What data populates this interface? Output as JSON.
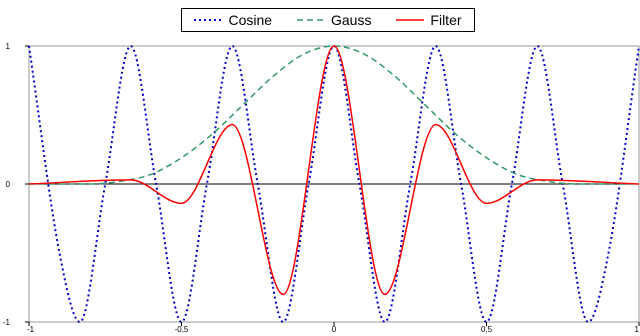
{
  "chart_data": {
    "type": "line",
    "title": "",
    "xlabel": "",
    "ylabel": "",
    "xlim": [
      -1,
      1
    ],
    "ylim": [
      -1,
      1
    ],
    "x_ticks": [
      -1,
      -0.5,
      0,
      0.5,
      1
    ],
    "x_tick_labels": [
      "-1",
      "-0,5",
      "0",
      "0,5",
      "1"
    ],
    "y_ticks": [
      -1,
      0,
      1
    ],
    "y_tick_labels": [
      "-1",
      "0",
      "1"
    ],
    "grid": false,
    "legend_position": "top-center",
    "series": [
      {
        "name": "Cosine",
        "style": "dotted",
        "color": "#0000cc",
        "x": [
          -1,
          -0.9,
          -0.8333,
          -0.75,
          -0.6667,
          -0.5833,
          -0.5,
          -0.4167,
          -0.3333,
          -0.25,
          -0.1667,
          -0.0833,
          0,
          0.0833,
          0.1667,
          0.25,
          0.3333,
          0.4167,
          0.5,
          0.5833,
          0.6667,
          0.75,
          0.8333,
          0.9,
          1
        ],
        "y": [
          1,
          -0.5,
          -1,
          0,
          1,
          0,
          -1,
          0,
          1,
          0,
          -1,
          0,
          1,
          0,
          -1,
          0,
          1,
          0,
          -1,
          0,
          1,
          0,
          -1,
          -0.5,
          1
        ]
      },
      {
        "name": "Gauss",
        "style": "dashed",
        "color": "#339966",
        "x": [
          -1,
          -0.8,
          -0.7,
          -0.6,
          -0.5,
          -0.4,
          -0.3,
          -0.2,
          -0.1,
          0,
          0.1,
          0.2,
          0.3,
          0.4,
          0.5,
          0.6,
          0.7,
          0.8,
          1
        ],
        "y": [
          0,
          0.0,
          0.02,
          0.07,
          0.19,
          0.36,
          0.57,
          0.78,
          0.94,
          1,
          0.94,
          0.78,
          0.57,
          0.36,
          0.19,
          0.07,
          0.02,
          0.0,
          0
        ]
      },
      {
        "name": "Filter",
        "style": "solid",
        "color": "#ff0000",
        "x": [
          -1,
          -0.6667,
          -0.5,
          -0.3333,
          -0.1667,
          0,
          0.1667,
          0.3333,
          0.5,
          0.6667,
          1
        ],
        "y": [
          0,
          0.03,
          -0.14,
          0.43,
          -0.8,
          1,
          -0.8,
          0.43,
          -0.14,
          0.03,
          0
        ]
      }
    ]
  }
}
